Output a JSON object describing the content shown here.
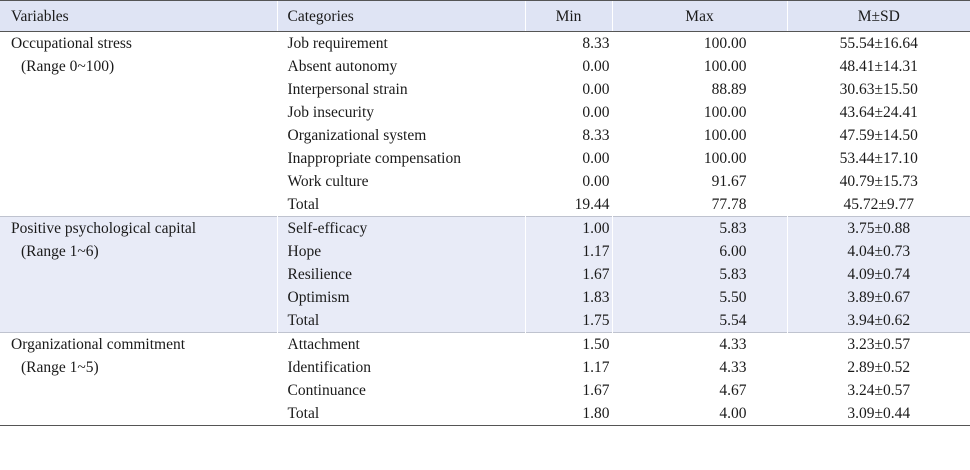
{
  "header": {
    "variables": "Variables",
    "categories": "Categories",
    "min": "Min",
    "max": "Max",
    "msd": "M±SD"
  },
  "groups": [
    {
      "variable": "Occupational stress",
      "range": "(Range 0~100)",
      "shaded": false,
      "rows": [
        {
          "category": "Job requirement",
          "min": "8.33",
          "max": "100.00",
          "msd": "55.54±16.64"
        },
        {
          "category": "Absent autonomy",
          "min": "0.00",
          "max": "100.00",
          "msd": "48.41±14.31"
        },
        {
          "category": "Interpersonal strain",
          "min": "0.00",
          "max": "88.89",
          "msd": "30.63±15.50"
        },
        {
          "category": "Job insecurity",
          "min": "0.00",
          "max": "100.00",
          "msd": "43.64±24.41"
        },
        {
          "category": "Organizational system",
          "min": "8.33",
          "max": "100.00",
          "msd": "47.59±14.50"
        },
        {
          "category": "Inappropriate compensation",
          "min": "0.00",
          "max": "100.00",
          "msd": "53.44±17.10"
        },
        {
          "category": "Work culture",
          "min": "0.00",
          "max": "91.67",
          "msd": "40.79±15.73"
        },
        {
          "category": "Total",
          "min": "19.44",
          "max": "77.78",
          "msd": "45.72±9.77"
        }
      ]
    },
    {
      "variable": "Positive psychological capital",
      "range": "(Range 1~6)",
      "shaded": true,
      "rows": [
        {
          "category": "Self-efficacy",
          "min": "1.00",
          "max": "5.83",
          "msd": "3.75±0.88"
        },
        {
          "category": "Hope",
          "min": "1.17",
          "max": "6.00",
          "msd": "4.04±0.73"
        },
        {
          "category": "Resilience",
          "min": "1.67",
          "max": "5.83",
          "msd": "4.09±0.74"
        },
        {
          "category": "Optimism",
          "min": "1.83",
          "max": "5.50",
          "msd": "3.89±0.67"
        },
        {
          "category": "Total",
          "min": "1.75",
          "max": "5.54",
          "msd": "3.94±0.62"
        }
      ]
    },
    {
      "variable": "Organizational commitment",
      "range": "(Range 1~5)",
      "shaded": false,
      "rows": [
        {
          "category": "Attachment",
          "min": "1.50",
          "max": "4.33",
          "msd": "3.23±0.57"
        },
        {
          "category": "Identification",
          "min": "1.17",
          "max": "4.33",
          "msd": "2.89±0.52"
        },
        {
          "category": "Continuance",
          "min": "1.67",
          "max": "4.67",
          "msd": "3.24±0.57"
        },
        {
          "category": "Total",
          "min": "1.80",
          "max": "4.00",
          "msd": "3.09±0.44"
        }
      ]
    }
  ],
  "colors": {
    "header_bg": "#dfe4f4",
    "shaded_bg": "#e8ebf7",
    "rule": "#555555"
  }
}
